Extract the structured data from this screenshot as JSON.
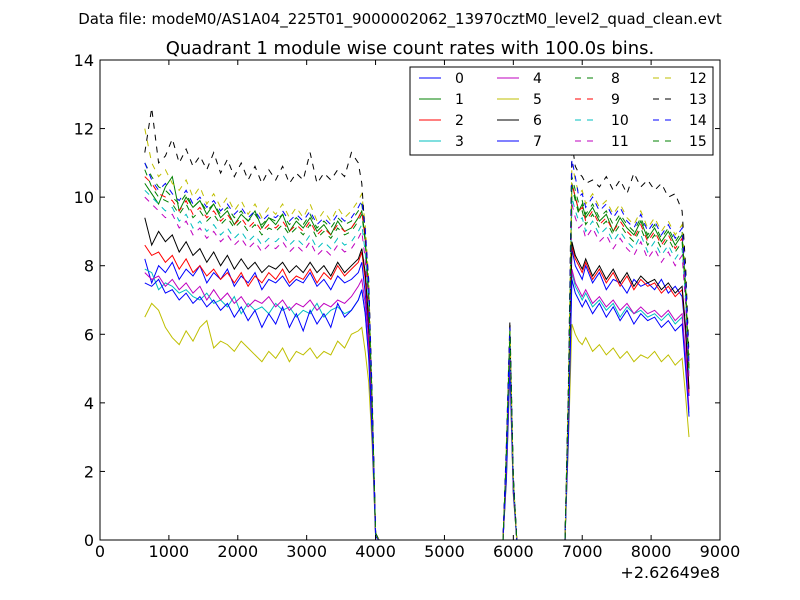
{
  "chart_data": {
    "type": "line",
    "suptitle": "Data file: modeM0/AS1A04_225T01_9000002062_13970cztM0_level2_quad_clean.evt",
    "title": "Quadrant 1 module wise count rates with 100.0s bins.",
    "xlabel": "",
    "ylabel": "",
    "x_offset_label": "+2.62649e8",
    "xlim": [
      0,
      9000
    ],
    "ylim": [
      0,
      14
    ],
    "x_ticks": [
      "0",
      "1000",
      "2000",
      "3000",
      "4000",
      "5000",
      "6000",
      "7000",
      "8000",
      "9000"
    ],
    "y_ticks": [
      "0",
      "2",
      "4",
      "6",
      "8",
      "10",
      "12",
      "14"
    ],
    "grid": false,
    "legend_position": "top-right",
    "legend_columns": 4,
    "x": [
      650,
      750,
      850,
      950,
      1050,
      1150,
      1250,
      1350,
      1450,
      1550,
      1650,
      1750,
      1850,
      1950,
      2050,
      2150,
      2250,
      2350,
      2450,
      2550,
      2650,
      2750,
      2850,
      2950,
      3050,
      3150,
      3250,
      3350,
      3450,
      3550,
      3650,
      3750,
      3800,
      3850,
      3900,
      3950,
      4000,
      4050,
      4100,
      4150,
      5850,
      5900,
      5950,
      6000,
      6050,
      6100,
      6750,
      6800,
      6850,
      6900,
      6950,
      7000,
      7050,
      7150,
      7250,
      7350,
      7450,
      7550,
      7650,
      7750,
      7850,
      7950,
      8050,
      8150,
      8250,
      8350,
      8450,
      8500,
      8550
    ],
    "series": [
      {
        "name": "0",
        "color": "#0000ff",
        "dashed": false,
        "values": [
          8.2,
          7.5,
          8.0,
          7.8,
          8.1,
          7.6,
          7.9,
          7.7,
          8.0,
          7.5,
          7.8,
          7.6,
          7.9,
          7.4,
          7.7,
          7.5,
          7.8,
          7.3,
          7.6,
          7.5,
          7.7,
          7.4,
          7.6,
          7.5,
          7.8,
          7.4,
          7.6,
          7.3,
          7.7,
          7.5,
          7.6,
          7.8,
          8.1,
          7.2,
          6.0,
          3.5,
          0.2,
          0,
          0,
          0,
          0,
          2.0,
          5.5,
          1.5,
          0,
          0,
          0,
          3.5,
          8.5,
          8.0,
          7.8,
          7.6,
          8.0,
          7.5,
          7.8,
          7.3,
          7.6,
          7.5,
          7.2,
          7.6,
          7.4,
          7.5,
          7.3,
          7.6,
          7.2,
          7.4,
          7.1,
          6.0,
          4.2
        ]
      },
      {
        "name": "1",
        "color": "#008000",
        "dashed": false,
        "values": [
          10.4,
          10.1,
          9.8,
          10.3,
          10.6,
          9.6,
          10.0,
          9.7,
          9.9,
          9.5,
          9.8,
          9.4,
          9.6,
          9.2,
          9.5,
          9.3,
          9.6,
          9.1,
          9.4,
          9.2,
          9.5,
          9.0,
          9.3,
          9.1,
          9.4,
          9.0,
          9.2,
          8.9,
          9.3,
          9.0,
          9.1,
          9.4,
          9.6,
          8.8,
          7.2,
          4.0,
          0.2,
          0,
          0,
          0,
          0,
          2.6,
          6.1,
          1.8,
          0,
          0,
          0,
          4.2,
          10.4,
          10.0,
          9.6,
          9.8,
          9.4,
          9.7,
          9.3,
          9.5,
          9.0,
          9.4,
          9.1,
          8.9,
          9.3,
          8.8,
          9.1,
          8.7,
          9.0,
          8.6,
          8.9,
          7.4,
          5.0
        ]
      },
      {
        "name": "2",
        "color": "#ff0000",
        "dashed": false,
        "values": [
          8.6,
          8.3,
          8.4,
          8.1,
          8.3,
          7.9,
          8.2,
          7.8,
          8.0,
          7.7,
          7.9,
          7.6,
          7.8,
          7.5,
          7.8,
          7.4,
          7.7,
          7.5,
          7.8,
          7.6,
          7.9,
          7.5,
          7.7,
          7.6,
          7.9,
          7.5,
          7.8,
          7.6,
          8.0,
          7.7,
          7.9,
          8.1,
          8.4,
          7.6,
          6.2,
          3.6,
          0.2,
          0,
          0,
          0,
          0,
          2.1,
          5.6,
          1.5,
          0,
          0,
          0,
          3.6,
          8.6,
          8.2,
          8.0,
          7.8,
          8.1,
          7.6,
          7.9,
          7.5,
          7.8,
          7.4,
          7.7,
          7.3,
          7.6,
          7.4,
          7.5,
          7.2,
          7.4,
          7.1,
          7.3,
          6.1,
          4.3
        ]
      },
      {
        "name": "3",
        "color": "#00bfbf",
        "dashed": false,
        "values": [
          7.9,
          7.8,
          7.3,
          7.5,
          7.4,
          7.2,
          7.3,
          7.1,
          7.0,
          7.2,
          6.9,
          7.0,
          6.8,
          7.1,
          6.6,
          6.9,
          6.7,
          6.8,
          6.6,
          6.9,
          6.7,
          6.8,
          6.5,
          6.7,
          6.6,
          6.9,
          6.5,
          6.7,
          6.8,
          6.6,
          6.7,
          7.0,
          7.3,
          6.6,
          5.4,
          3.2,
          0.1,
          0,
          0,
          0,
          0,
          1.9,
          5.2,
          1.4,
          0,
          0,
          0,
          3.1,
          7.8,
          7.4,
          7.2,
          7.0,
          7.2,
          6.8,
          7.0,
          6.7,
          6.9,
          6.5,
          6.8,
          6.6,
          6.7,
          6.5,
          6.6,
          6.4,
          6.6,
          6.3,
          6.5,
          5.2,
          3.7
        ]
      },
      {
        "name": "4",
        "color": "#bf00bf",
        "dashed": false,
        "values": [
          7.8,
          7.6,
          7.7,
          7.4,
          7.6,
          7.3,
          7.5,
          7.2,
          7.4,
          7.0,
          7.3,
          7.0,
          7.2,
          6.9,
          7.1,
          6.8,
          7.0,
          6.9,
          7.1,
          6.8,
          7.0,
          6.7,
          6.9,
          6.8,
          7.0,
          6.7,
          6.9,
          6.8,
          7.0,
          6.9,
          7.1,
          7.4,
          7.6,
          6.9,
          5.6,
          3.3,
          0.1,
          0,
          0,
          0,
          0,
          1.9,
          5.3,
          1.4,
          0,
          0,
          0,
          3.3,
          7.9,
          7.5,
          7.3,
          7.1,
          7.3,
          6.9,
          7.1,
          6.8,
          7.0,
          6.7,
          6.9,
          6.6,
          6.8,
          6.6,
          6.7,
          6.5,
          6.7,
          6.4,
          6.6,
          5.4,
          3.8
        ]
      },
      {
        "name": "5",
        "color": "#bfbf00",
        "dashed": false,
        "values": [
          6.5,
          6.9,
          6.7,
          6.2,
          5.9,
          5.7,
          6.1,
          5.8,
          6.2,
          6.4,
          5.6,
          5.8,
          5.7,
          5.5,
          5.8,
          5.6,
          5.4,
          5.2,
          5.5,
          5.3,
          5.6,
          5.2,
          5.5,
          5.4,
          5.6,
          5.3,
          5.5,
          5.4,
          5.8,
          5.6,
          6.0,
          6.1,
          6.2,
          5.5,
          4.6,
          2.8,
          0.1,
          0,
          0,
          0,
          0,
          1.7,
          4.9,
          1.3,
          0,
          0,
          0,
          2.8,
          6.3,
          6.0,
          5.8,
          5.7,
          5.9,
          5.5,
          5.7,
          5.4,
          5.6,
          5.3,
          5.5,
          5.2,
          5.4,
          5.3,
          5.5,
          5.2,
          5.4,
          5.1,
          5.3,
          4.2,
          3.0
        ]
      },
      {
        "name": "6",
        "color": "#000000",
        "dashed": false,
        "values": [
          9.4,
          8.6,
          9.0,
          8.7,
          8.9,
          8.4,
          8.7,
          8.3,
          8.5,
          8.1,
          8.4,
          8.0,
          8.3,
          7.9,
          8.2,
          7.9,
          8.1,
          7.8,
          8.0,
          7.9,
          8.1,
          7.8,
          8.0,
          7.8,
          8.1,
          7.8,
          8.0,
          7.7,
          8.1,
          7.8,
          8.0,
          8.2,
          8.5,
          7.8,
          6.4,
          3.8,
          0.2,
          0,
          0,
          0,
          0,
          2.2,
          5.8,
          1.6,
          0,
          0,
          0,
          3.8,
          8.7,
          8.3,
          8.1,
          7.9,
          8.2,
          7.7,
          8.0,
          7.6,
          7.9,
          7.5,
          7.8,
          7.4,
          7.7,
          7.5,
          7.6,
          7.3,
          7.5,
          7.2,
          7.4,
          6.2,
          4.4
        ]
      },
      {
        "name": "7",
        "color": "#0000ff",
        "dashed": false,
        "values": [
          7.5,
          7.4,
          7.6,
          7.2,
          7.3,
          7.0,
          7.2,
          6.9,
          7.1,
          6.8,
          7.0,
          6.7,
          6.9,
          6.5,
          6.8,
          6.4,
          6.7,
          6.2,
          6.6,
          6.3,
          6.8,
          6.2,
          6.6,
          6.1,
          6.7,
          6.3,
          6.6,
          6.2,
          6.9,
          6.5,
          6.7,
          7.0,
          7.3,
          6.6,
          5.3,
          3.1,
          0.1,
          0,
          0,
          0,
          0,
          1.8,
          5.1,
          1.4,
          0,
          0,
          0,
          3.0,
          7.6,
          7.2,
          7.0,
          6.8,
          7.0,
          6.6,
          6.9,
          6.5,
          6.8,
          6.4,
          6.7,
          6.3,
          6.6,
          6.4,
          6.5,
          6.2,
          6.4,
          6.1,
          6.3,
          5.0,
          3.6
        ]
      },
      {
        "name": "8",
        "color": "#008000",
        "dashed": true,
        "values": [
          11.0,
          10.6,
          10.3,
          10.2,
          10.0,
          9.8,
          10.1,
          9.7,
          9.9,
          9.6,
          9.8,
          9.5,
          9.7,
          9.4,
          9.6,
          9.3,
          9.5,
          9.2,
          9.4,
          9.3,
          9.5,
          9.2,
          9.4,
          9.2,
          9.5,
          9.1,
          9.3,
          9.1,
          9.4,
          9.2,
          9.3,
          9.6,
          9.8,
          9.0,
          7.4,
          4.1,
          0.2,
          0,
          0,
          0,
          0,
          2.6,
          6.2,
          1.8,
          0,
          0,
          0,
          4.3,
          10.6,
          10.2,
          9.8,
          9.9,
          9.5,
          9.8,
          9.4,
          9.6,
          9.2,
          9.5,
          9.2,
          9.0,
          9.4,
          8.9,
          9.2,
          8.8,
          9.1,
          8.7,
          9.0,
          7.5,
          5.1
        ]
      },
      {
        "name": "9",
        "color": "#ff0000",
        "dashed": true,
        "values": [
          10.6,
          10.4,
          10.1,
          10.0,
          9.9,
          9.6,
          9.9,
          9.5,
          9.7,
          9.4,
          9.6,
          9.3,
          9.5,
          9.2,
          9.4,
          9.1,
          9.3,
          9.0,
          9.2,
          9.1,
          9.3,
          9.0,
          9.2,
          9.0,
          9.3,
          8.9,
          9.1,
          8.9,
          9.2,
          9.0,
          9.1,
          9.4,
          9.6,
          8.8,
          7.2,
          4.0,
          0.2,
          0,
          0,
          0,
          0,
          2.5,
          6.0,
          1.7,
          0,
          0,
          0,
          4.1,
          10.4,
          10.0,
          9.6,
          9.7,
          9.3,
          9.6,
          9.2,
          9.4,
          9.0,
          9.3,
          9.0,
          8.8,
          9.2,
          8.7,
          9.0,
          8.6,
          8.9,
          8.5,
          8.8,
          7.3,
          5.0
        ]
      },
      {
        "name": "10",
        "color": "#00bfbf",
        "dashed": true,
        "values": [
          10.2,
          10.0,
          9.8,
          9.6,
          9.7,
          9.3,
          9.5,
          9.1,
          9.3,
          9.0,
          9.2,
          8.9,
          9.1,
          8.8,
          9.0,
          8.7,
          8.9,
          8.6,
          8.8,
          8.7,
          8.9,
          8.6,
          8.8,
          8.6,
          8.9,
          8.5,
          8.7,
          8.5,
          8.8,
          8.6,
          8.7,
          9.0,
          9.2,
          8.4,
          6.9,
          3.9,
          0.2,
          0,
          0,
          0,
          0,
          2.4,
          5.9,
          1.7,
          0,
          0,
          0,
          3.9,
          10.0,
          9.6,
          9.3,
          9.4,
          9.0,
          9.3,
          8.9,
          9.1,
          8.7,
          9.0,
          8.7,
          8.5,
          8.9,
          8.4,
          8.7,
          8.3,
          8.6,
          8.2,
          8.5,
          7.0,
          4.8
        ]
      },
      {
        "name": "11",
        "color": "#bf00bf",
        "dashed": true,
        "values": [
          10.0,
          9.8,
          9.6,
          9.4,
          9.5,
          9.1,
          9.3,
          8.9,
          9.1,
          8.8,
          9.0,
          8.7,
          8.9,
          8.6,
          8.8,
          8.5,
          8.7,
          8.4,
          8.6,
          8.5,
          8.7,
          8.4,
          8.6,
          8.4,
          8.7,
          8.3,
          8.5,
          8.3,
          8.6,
          8.4,
          8.5,
          8.8,
          9.0,
          8.2,
          6.8,
          3.8,
          0.2,
          0,
          0,
          0,
          0,
          2.3,
          5.8,
          1.6,
          0,
          0,
          0,
          3.8,
          9.8,
          9.4,
          9.1,
          9.2,
          8.8,
          9.1,
          8.7,
          8.9,
          8.5,
          8.8,
          8.5,
          8.3,
          8.7,
          8.2,
          8.5,
          8.1,
          8.4,
          8.0,
          8.3,
          6.9,
          4.7
        ]
      },
      {
        "name": "12",
        "color": "#bfbf00",
        "dashed": true,
        "values": [
          12.0,
          11.0,
          10.6,
          10.8,
          10.4,
          10.2,
          10.5,
          10.0,
          10.3,
          9.8,
          10.1,
          9.7,
          10.0,
          9.6,
          9.9,
          9.5,
          9.8,
          9.4,
          9.7,
          9.5,
          9.8,
          9.4,
          9.7,
          9.4,
          9.8,
          9.3,
          9.6,
          9.3,
          9.7,
          9.4,
          9.6,
          9.9,
          10.1,
          9.2,
          7.6,
          4.2,
          0.2,
          0,
          0,
          0,
          0,
          2.7,
          6.3,
          1.8,
          0,
          0,
          0,
          4.4,
          11.0,
          10.5,
          10.1,
          10.2,
          9.8,
          10.1,
          9.7,
          9.9,
          9.5,
          9.8,
          9.4,
          9.2,
          9.6,
          9.1,
          9.4,
          9.0,
          9.3,
          8.9,
          9.2,
          7.7,
          5.2
        ]
      },
      {
        "name": "13",
        "color": "#000000",
        "dashed": true,
        "values": [
          11.3,
          12.6,
          11.0,
          11.2,
          11.7,
          11.0,
          11.4,
          10.9,
          11.2,
          10.8,
          11.3,
          10.7,
          11.1,
          10.6,
          11.0,
          10.5,
          10.9,
          10.4,
          10.8,
          10.5,
          10.9,
          10.4,
          10.7,
          10.5,
          11.3,
          10.4,
          10.7,
          10.5,
          10.8,
          10.6,
          11.3,
          11.0,
          10.4,
          8.9,
          7.6,
          4.3,
          0.2,
          0,
          0,
          0,
          0,
          2.8,
          6.4,
          1.9,
          0,
          0,
          0,
          4.5,
          11.6,
          10.9,
          10.7,
          10.6,
          10.4,
          10.5,
          10.3,
          10.6,
          10.2,
          10.5,
          10.1,
          10.7,
          10.3,
          10.5,
          10.2,
          10.4,
          10.0,
          10.1,
          9.6,
          8.0,
          5.4
        ]
      },
      {
        "name": "14",
        "color": "#0000ff",
        "dashed": true,
        "values": [
          11.0,
          10.5,
          10.2,
          10.4,
          10.1,
          9.9,
          10.2,
          9.8,
          10.0,
          9.7,
          9.9,
          9.6,
          9.8,
          9.5,
          9.7,
          9.4,
          9.6,
          9.3,
          9.5,
          9.4,
          9.6,
          9.3,
          9.5,
          9.3,
          9.6,
          9.2,
          9.4,
          9.2,
          9.5,
          9.3,
          9.4,
          9.7,
          9.9,
          9.1,
          7.5,
          4.1,
          0.2,
          0,
          0,
          0,
          0,
          2.6,
          6.2,
          1.8,
          0,
          0,
          0,
          4.3,
          11.1,
          10.6,
          10.0,
          10.1,
          9.7,
          10.0,
          9.6,
          9.8,
          9.4,
          9.7,
          9.3,
          9.1,
          9.5,
          9.0,
          9.3,
          8.9,
          9.2,
          8.8,
          9.1,
          7.6,
          5.1
        ]
      },
      {
        "name": "15",
        "color": "#008000",
        "dashed": true,
        "values": [
          10.8,
          10.3,
          10.0,
          9.9,
          9.8,
          9.5,
          9.8,
          9.4,
          9.6,
          9.3,
          9.5,
          9.2,
          9.4,
          9.1,
          9.3,
          9.0,
          9.2,
          8.9,
          9.1,
          9.0,
          9.2,
          8.9,
          9.1,
          8.9,
          9.2,
          8.8,
          9.0,
          8.8,
          9.1,
          8.9,
          9.0,
          9.3,
          9.5,
          8.7,
          7.1,
          4.0,
          0.2,
          0,
          0,
          0,
          0,
          2.5,
          6.1,
          1.7,
          0,
          0,
          0,
          4.1,
          10.3,
          9.9,
          9.5,
          9.6,
          9.2,
          9.5,
          9.1,
          9.3,
          8.9,
          9.2,
          8.9,
          8.7,
          9.1,
          8.6,
          8.9,
          8.5,
          8.8,
          8.4,
          8.7,
          7.2,
          4.9
        ]
      }
    ]
  }
}
